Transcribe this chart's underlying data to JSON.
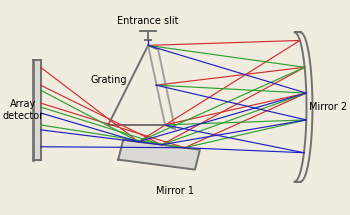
{
  "bg_color": "#f0ece0",
  "colors": {
    "red": "#d03030",
    "green": "#30a030",
    "blue": "#2020c0",
    "gray": "#707070",
    "lgray": "#a0a0a0"
  },
  "labels": {
    "entrance_slit": "Entrance slit",
    "grating": "Grating",
    "mirror1": "Mirror 1",
    "mirror2": "Mirror 2",
    "array_det": "Array\ndetector"
  },
  "fontsize": 7,
  "lw_structure": 1.4,
  "lw_ray": 0.85
}
